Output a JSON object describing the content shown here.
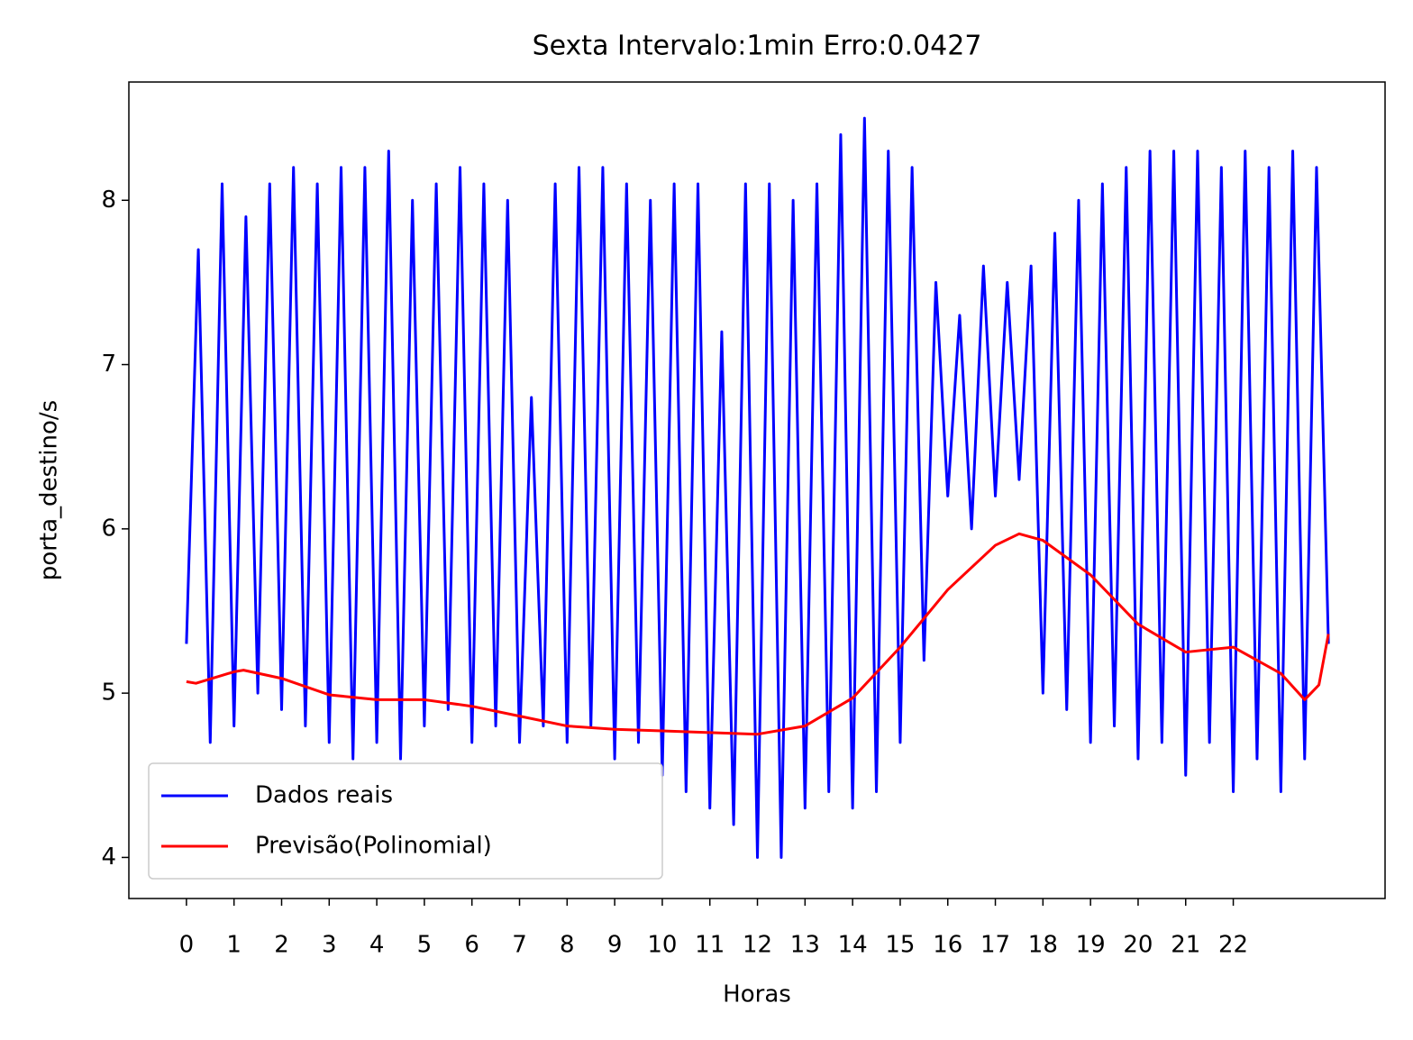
{
  "chart_data": {
    "type": "line",
    "title": "Sexta Intervalo:1min Erro:0.0427",
    "xlabel": "Horas",
    "ylabel": "porta_destino/s",
    "xlim": [
      -1.21,
      25.19
    ],
    "ylim": [
      3.75,
      8.72
    ],
    "xticks": [
      0,
      1,
      2,
      3,
      4,
      5,
      6,
      7,
      8,
      9,
      10,
      11,
      12,
      13,
      14,
      15,
      16,
      17,
      18,
      19,
      20,
      21,
      22
    ],
    "yticks": [
      4,
      5,
      6,
      7,
      8
    ],
    "legend": "lower left",
    "series": [
      {
        "name": "Dados reais",
        "color": "#0000ff",
        "x": [
          0,
          0.25,
          0.5,
          0.75,
          1,
          1.25,
          1.5,
          1.75,
          2,
          2.25,
          2.5,
          2.75,
          3,
          3.25,
          3.5,
          3.75,
          4,
          4.25,
          4.5,
          4.75,
          5,
          5.25,
          5.5,
          5.75,
          6,
          6.25,
          6.5,
          6.75,
          7,
          7.25,
          7.5,
          7.75,
          8,
          8.25,
          8.5,
          8.75,
          9,
          9.25,
          9.5,
          9.75,
          10,
          10.25,
          10.5,
          10.75,
          11,
          11.25,
          11.5,
          11.75,
          12,
          12.25,
          12.5,
          12.75,
          13,
          13.25,
          13.5,
          13.75,
          14,
          14.25,
          14.5,
          14.75,
          15,
          15.25,
          15.5,
          15.75,
          16,
          16.25,
          16.5,
          16.75,
          17,
          17.25,
          17.5,
          17.75,
          18,
          18.25,
          18.5,
          18.75,
          19,
          19.25,
          19.5,
          19.75,
          20,
          20.25,
          20.5,
          20.75,
          21,
          21.25,
          21.5,
          21.75,
          22,
          22.25,
          22.5,
          22.75,
          23,
          23.25,
          23.5,
          23.75,
          24
        ],
        "values": [
          5.3,
          7.7,
          4.7,
          8.1,
          4.8,
          7.9,
          5.0,
          8.1,
          4.9,
          8.2,
          4.8,
          8.1,
          4.7,
          8.2,
          4.6,
          8.2,
          4.7,
          8.3,
          4.6,
          8.0,
          4.8,
          8.1,
          4.9,
          8.2,
          4.7,
          8.1,
          4.8,
          8.0,
          4.7,
          6.8,
          4.8,
          8.1,
          4.7,
          8.2,
          4.8,
          8.2,
          4.6,
          8.1,
          4.7,
          8.0,
          4.5,
          8.1,
          4.4,
          8.1,
          4.3,
          7.2,
          4.2,
          8.1,
          4.0,
          8.1,
          4.0,
          8.0,
          4.3,
          8.1,
          4.4,
          8.4,
          4.3,
          8.5,
          4.4,
          8.3,
          4.7,
          8.2,
          5.2,
          7.5,
          6.2,
          7.3,
          6.0,
          7.6,
          6.2,
          7.5,
          6.3,
          7.6,
          5.0,
          7.8,
          4.9,
          8.0,
          4.7,
          8.1,
          4.8,
          8.2,
          4.6,
          8.3,
          4.7,
          8.3,
          4.5,
          8.3,
          4.7,
          8.2,
          4.4,
          8.3,
          4.6,
          8.2,
          4.4,
          8.3,
          4.6,
          8.2,
          5.3
        ]
      },
      {
        "name": "Previsão(Polinomial)",
        "color": "#ff0000",
        "x": [
          0,
          0.2,
          1,
          1.2,
          2,
          3,
          4,
          5,
          6,
          7,
          8,
          9,
          10,
          11,
          12,
          13,
          14,
          15,
          16,
          17,
          17.5,
          18,
          19,
          20,
          21,
          22,
          23,
          23.5,
          23.8,
          24
        ],
        "values": [
          5.07,
          5.06,
          5.13,
          5.14,
          5.09,
          4.99,
          4.96,
          4.96,
          4.92,
          4.86,
          4.8,
          4.78,
          4.77,
          4.76,
          4.75,
          4.8,
          4.97,
          5.28,
          5.63,
          5.9,
          5.97,
          5.93,
          5.72,
          5.42,
          5.25,
          5.28,
          5.12,
          4.96,
          5.05,
          5.36
        ]
      }
    ]
  }
}
